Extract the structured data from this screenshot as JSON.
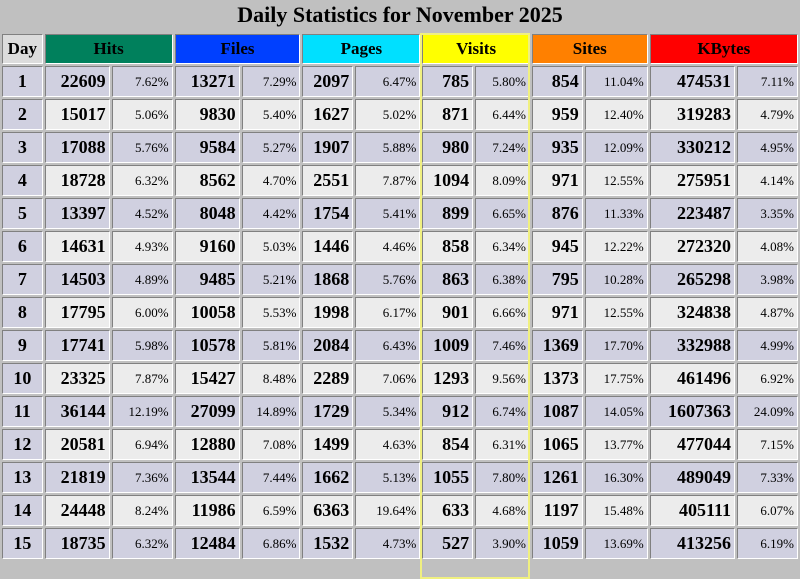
{
  "title": "Daily Statistics for November 2025",
  "headers": {
    "day": "Day",
    "hits": "Hits",
    "files": "Files",
    "pages": "Pages",
    "visits": "Visits",
    "sites": "Sites",
    "kbytes": "KBytes"
  },
  "header_colors": {
    "hits": "#00805c",
    "files": "#0040ff",
    "pages": "#00e0ff",
    "visits": "#ffff00",
    "sites": "#ff8000",
    "kbytes": "#ff0000"
  },
  "rows": [
    {
      "day": "1",
      "hits": "22609",
      "hits_pct": "7.62%",
      "files": "13271",
      "files_pct": "7.29%",
      "pages": "2097",
      "pages_pct": "6.47%",
      "visits": "785",
      "visits_pct": "5.80%",
      "sites": "854",
      "sites_pct": "11.04%",
      "kbytes": "474531",
      "kbytes_pct": "7.11%"
    },
    {
      "day": "2",
      "hits": "15017",
      "hits_pct": "5.06%",
      "files": "9830",
      "files_pct": "5.40%",
      "pages": "1627",
      "pages_pct": "5.02%",
      "visits": "871",
      "visits_pct": "6.44%",
      "sites": "959",
      "sites_pct": "12.40%",
      "kbytes": "319283",
      "kbytes_pct": "4.79%"
    },
    {
      "day": "3",
      "hits": "17088",
      "hits_pct": "5.76%",
      "files": "9584",
      "files_pct": "5.27%",
      "pages": "1907",
      "pages_pct": "5.88%",
      "visits": "980",
      "visits_pct": "7.24%",
      "sites": "935",
      "sites_pct": "12.09%",
      "kbytes": "330212",
      "kbytes_pct": "4.95%"
    },
    {
      "day": "4",
      "hits": "18728",
      "hits_pct": "6.32%",
      "files": "8562",
      "files_pct": "4.70%",
      "pages": "2551",
      "pages_pct": "7.87%",
      "visits": "1094",
      "visits_pct": "8.09%",
      "sites": "971",
      "sites_pct": "12.55%",
      "kbytes": "275951",
      "kbytes_pct": "4.14%"
    },
    {
      "day": "5",
      "hits": "13397",
      "hits_pct": "4.52%",
      "files": "8048",
      "files_pct": "4.42%",
      "pages": "1754",
      "pages_pct": "5.41%",
      "visits": "899",
      "visits_pct": "6.65%",
      "sites": "876",
      "sites_pct": "11.33%",
      "kbytes": "223487",
      "kbytes_pct": "3.35%"
    },
    {
      "day": "6",
      "hits": "14631",
      "hits_pct": "4.93%",
      "files": "9160",
      "files_pct": "5.03%",
      "pages": "1446",
      "pages_pct": "4.46%",
      "visits": "858",
      "visits_pct": "6.34%",
      "sites": "945",
      "sites_pct": "12.22%",
      "kbytes": "272320",
      "kbytes_pct": "4.08%"
    },
    {
      "day": "7",
      "hits": "14503",
      "hits_pct": "4.89%",
      "files": "9485",
      "files_pct": "5.21%",
      "pages": "1868",
      "pages_pct": "5.76%",
      "visits": "863",
      "visits_pct": "6.38%",
      "sites": "795",
      "sites_pct": "10.28%",
      "kbytes": "265298",
      "kbytes_pct": "3.98%"
    },
    {
      "day": "8",
      "hits": "17795",
      "hits_pct": "6.00%",
      "files": "10058",
      "files_pct": "5.53%",
      "pages": "1998",
      "pages_pct": "6.17%",
      "visits": "901",
      "visits_pct": "6.66%",
      "sites": "971",
      "sites_pct": "12.55%",
      "kbytes": "324838",
      "kbytes_pct": "4.87%"
    },
    {
      "day": "9",
      "hits": "17741",
      "hits_pct": "5.98%",
      "files": "10578",
      "files_pct": "5.81%",
      "pages": "2084",
      "pages_pct": "6.43%",
      "visits": "1009",
      "visits_pct": "7.46%",
      "sites": "1369",
      "sites_pct": "17.70%",
      "kbytes": "332988",
      "kbytes_pct": "4.99%"
    },
    {
      "day": "10",
      "hits": "23325",
      "hits_pct": "7.87%",
      "files": "15427",
      "files_pct": "8.48%",
      "pages": "2289",
      "pages_pct": "7.06%",
      "visits": "1293",
      "visits_pct": "9.56%",
      "sites": "1373",
      "sites_pct": "17.75%",
      "kbytes": "461496",
      "kbytes_pct": "6.92%"
    },
    {
      "day": "11",
      "hits": "36144",
      "hits_pct": "12.19%",
      "files": "27099",
      "files_pct": "14.89%",
      "pages": "1729",
      "pages_pct": "5.34%",
      "visits": "912",
      "visits_pct": "6.74%",
      "sites": "1087",
      "sites_pct": "14.05%",
      "kbytes": "1607363",
      "kbytes_pct": "24.09%"
    },
    {
      "day": "12",
      "hits": "20581",
      "hits_pct": "6.94%",
      "files": "12880",
      "files_pct": "7.08%",
      "pages": "1499",
      "pages_pct": "4.63%",
      "visits": "854",
      "visits_pct": "6.31%",
      "sites": "1065",
      "sites_pct": "13.77%",
      "kbytes": "477044",
      "kbytes_pct": "7.15%"
    },
    {
      "day": "13",
      "hits": "21819",
      "hits_pct": "7.36%",
      "files": "13544",
      "files_pct": "7.44%",
      "pages": "1662",
      "pages_pct": "5.13%",
      "visits": "1055",
      "visits_pct": "7.80%",
      "sites": "1261",
      "sites_pct": "16.30%",
      "kbytes": "489049",
      "kbytes_pct": "7.33%"
    },
    {
      "day": "14",
      "hits": "24448",
      "hits_pct": "8.24%",
      "files": "11986",
      "files_pct": "6.59%",
      "pages": "6363",
      "pages_pct": "19.64%",
      "visits": "633",
      "visits_pct": "4.68%",
      "sites": "1197",
      "sites_pct": "15.48%",
      "kbytes": "405111",
      "kbytes_pct": "6.07%"
    },
    {
      "day": "15",
      "hits": "18735",
      "hits_pct": "6.32%",
      "files": "12484",
      "files_pct": "6.86%",
      "pages": "1532",
      "pages_pct": "4.73%",
      "visits": "527",
      "visits_pct": "3.90%",
      "sites": "1059",
      "sites_pct": "13.69%",
      "kbytes": "413256",
      "kbytes_pct": "6.19%"
    }
  ]
}
